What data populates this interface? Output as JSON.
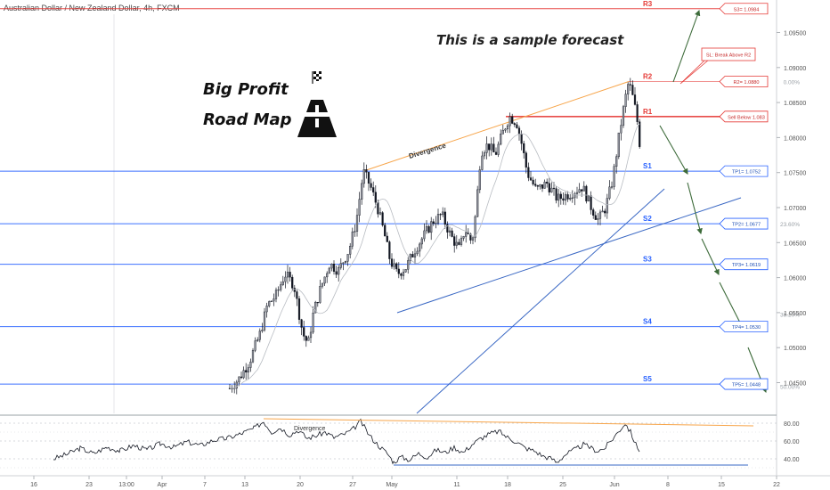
{
  "chart_data": {
    "type": "candlestick",
    "title": "Australian Dollar / New Zealand Dollar, 4h, FXCM",
    "y_range": [
      1.0445,
      1.0995
    ],
    "y_ticks": [
      "1.09500",
      "1.09000",
      "1.08500",
      "1.08000",
      "1.07500",
      "1.07000",
      "1.06500",
      "1.06000",
      "1.05500",
      "1.05000",
      "1.04500"
    ],
    "y_tick_values": [
      1.095,
      1.09,
      1.085,
      1.08,
      1.075,
      1.07,
      1.065,
      1.06,
      1.055,
      1.05,
      1.045
    ],
    "x_ticks": [
      "16",
      "23",
      "13:00",
      "Apr",
      "7",
      "13",
      "20",
      "27",
      "May",
      "11",
      "18",
      "25",
      "Jun",
      "8",
      "15",
      "22"
    ],
    "rsi_ticks": [
      "80.00",
      "60.00",
      "40.00"
    ],
    "rsi_tick_values": [
      80,
      60,
      40
    ],
    "levels": [
      {
        "name": "R3",
        "price": 1.0984,
        "box": "S3= 1.0984",
        "color": "#e53935"
      },
      {
        "name": "R2",
        "price": 1.088,
        "box": "R2= 1.0880",
        "color": "#e53935"
      },
      {
        "name": "R1",
        "price": 1.083,
        "box": "Sell Below 1.083",
        "color": "#e53935"
      },
      {
        "name": "S1",
        "price": 1.0752,
        "box": "TP1= 1.0752",
        "color": "#2962ff"
      },
      {
        "name": "S2",
        "price": 1.0677,
        "box": "TP2= 1.0677",
        "color": "#2962ff"
      },
      {
        "name": "S3",
        "price": 1.0619,
        "box": "TP3= 1.0619",
        "color": "#2962ff"
      },
      {
        "name": "S4",
        "price": 1.053,
        "box": "TP4= 1.0530",
        "color": "#2962ff"
      },
      {
        "name": "S5",
        "price": 1.0448,
        "box": "TP5= 1.0448",
        "color": "#2962ff"
      }
    ],
    "stop_loss_box": "SL: Break Above R2",
    "fib_levels": [
      {
        "label": "0.00%",
        "price": 1.088
      },
      {
        "label": "23.60%",
        "price": 1.0677
      },
      {
        "label": "38.20%",
        "price": 1.0548
      },
      {
        "label": "50.00%",
        "price": 1.0445
      }
    ],
    "annotations": {
      "forecast": "This is a sample forecast",
      "title_line1": "Big Profit",
      "title_line2": "Road Map",
      "divergence_price": "Divergence",
      "divergence_rsi": "Divergence"
    },
    "price_anchors": [
      [
        258,
        1.0442
      ],
      [
        268,
        1.0455
      ],
      [
        280,
        1.048
      ],
      [
        292,
        1.052
      ],
      [
        300,
        1.056
      ],
      [
        310,
        1.0575
      ],
      [
        320,
        1.0605
      ],
      [
        330,
        1.059
      ],
      [
        340,
        1.052
      ],
      [
        346,
        1.0505
      ],
      [
        352,
        1.055
      ],
      [
        360,
        1.0585
      ],
      [
        370,
        1.062
      ],
      [
        380,
        1.061
      ],
      [
        392,
        1.064
      ],
      [
        400,
        1.068
      ],
      [
        408,
        1.0752
      ],
      [
        416,
        1.073
      ],
      [
        424,
        1.07
      ],
      [
        432,
        1.066
      ],
      [
        438,
        1.0625
      ],
      [
        446,
        1.0605
      ],
      [
        456,
        1.0615
      ],
      [
        466,
        1.064
      ],
      [
        476,
        1.066
      ],
      [
        486,
        1.068
      ],
      [
        496,
        1.069
      ],
      [
        506,
        1.066
      ],
      [
        516,
        1.064
      ],
      [
        522,
        1.067
      ],
      [
        530,
        1.065
      ],
      [
        534,
        1.069
      ],
      [
        540,
        1.078
      ],
      [
        548,
        1.079
      ],
      [
        556,
        1.0775
      ],
      [
        566,
        1.0812
      ],
      [
        572,
        1.083
      ],
      [
        580,
        1.0822
      ],
      [
        586,
        1.079
      ],
      [
        592,
        1.075
      ],
      [
        602,
        1.0725
      ],
      [
        614,
        1.0735
      ],
      [
        626,
        1.0712
      ],
      [
        640,
        1.072
      ],
      [
        654,
        1.073
      ],
      [
        664,
        1.07
      ],
      [
        672,
        1.0682
      ],
      [
        680,
        1.07
      ],
      [
        688,
        1.074
      ],
      [
        696,
        1.081
      ],
      [
        702,
        1.0855
      ],
      [
        706,
        1.088
      ],
      [
        712,
        1.085
      ],
      [
        716,
        1.082
      ],
      [
        720,
        1.077
      ]
    ],
    "rsi_anchors": [
      [
        60,
        40
      ],
      [
        75,
        45
      ],
      [
        90,
        52
      ],
      [
        105,
        46
      ],
      [
        120,
        53
      ],
      [
        135,
        49
      ],
      [
        150,
        55
      ],
      [
        165,
        50
      ],
      [
        180,
        57
      ],
      [
        195,
        53
      ],
      [
        210,
        59
      ],
      [
        225,
        55
      ],
      [
        240,
        61
      ],
      [
        255,
        63
      ],
      [
        270,
        68
      ],
      [
        285,
        74
      ],
      [
        296,
        82
      ],
      [
        305,
        70
      ],
      [
        315,
        75
      ],
      [
        325,
        67
      ],
      [
        335,
        72
      ],
      [
        345,
        63
      ],
      [
        355,
        66
      ],
      [
        365,
        70
      ],
      [
        375,
        64
      ],
      [
        385,
        67
      ],
      [
        395,
        72
      ],
      [
        405,
        82
      ],
      [
        415,
        66
      ],
      [
        425,
        55
      ],
      [
        435,
        46
      ],
      [
        442,
        36
      ],
      [
        450,
        42
      ],
      [
        460,
        39
      ],
      [
        470,
        46
      ],
      [
        480,
        42
      ],
      [
        490,
        50
      ],
      [
        500,
        47
      ],
      [
        510,
        53
      ],
      [
        520,
        47
      ],
      [
        530,
        56
      ],
      [
        540,
        63
      ],
      [
        550,
        68
      ],
      [
        560,
        71
      ],
      [
        570,
        64
      ],
      [
        580,
        59
      ],
      [
        590,
        52
      ],
      [
        600,
        49
      ],
      [
        610,
        43
      ],
      [
        620,
        40
      ],
      [
        625,
        36
      ],
      [
        635,
        45
      ],
      [
        645,
        50
      ],
      [
        655,
        56
      ],
      [
        662,
        53
      ],
      [
        670,
        49
      ],
      [
        678,
        51
      ],
      [
        686,
        60
      ],
      [
        694,
        70
      ],
      [
        702,
        80
      ],
      [
        708,
        70
      ],
      [
        714,
        56
      ],
      [
        718,
        48
      ]
    ]
  }
}
